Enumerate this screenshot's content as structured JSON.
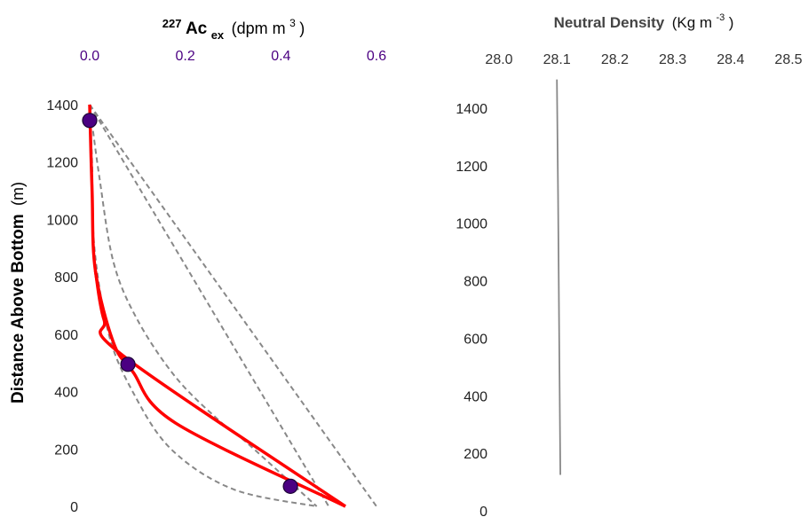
{
  "colors": {
    "purple": "#4b0082",
    "red": "#ff0000",
    "gray_dash": "#888888",
    "gray_line": "#888888",
    "tick_text": "#222222",
    "right_tick_text": "#333333"
  },
  "chart_data": [
    {
      "type": "line",
      "title": "",
      "xlabel": {
        "main": "Ac",
        "superscript": "227",
        "subscript": "ex",
        "unit_prefix": "(dpm m",
        "unit_power": "3",
        "unit_suffix": ")"
      },
      "ylabel": {
        "bold": "Distance Above Bottom",
        "unit": "(m)"
      },
      "x_axis_position": "top",
      "xlim": [
        -0.02,
        0.62
      ],
      "ylim": [
        0,
        1400
      ],
      "x_ticks": [
        "0.0",
        "0.2",
        "0.4",
        "0.6"
      ],
      "x_tick_values": [
        0.0,
        0.2,
        0.4,
        0.6
      ],
      "y_ticks": [
        "0",
        "200",
        "400",
        "600",
        "800",
        "1000",
        "1200",
        "1400"
      ],
      "y_tick_values": [
        0,
        200,
        400,
        600,
        800,
        1000,
        1200,
        1400
      ],
      "grid": false,
      "series": [
        {
          "style": "dashed-gray",
          "points": [
            [
              0.0,
              1400
            ],
            [
              0.005,
              1200
            ],
            [
              0.01,
              900
            ],
            [
              0.04,
              600
            ],
            [
              0.09,
              400
            ],
            [
              0.17,
              200
            ],
            [
              0.3,
              60
            ],
            [
              0.475,
              0
            ]
          ]
        },
        {
          "style": "dashed-gray",
          "points": [
            [
              0.0,
              1400
            ],
            [
              0.02,
              1150
            ],
            [
              0.05,
              850
            ],
            [
              0.1,
              650
            ],
            [
              0.18,
              450
            ],
            [
              0.27,
              300
            ],
            [
              0.33,
              220
            ],
            [
              0.475,
              0
            ]
          ]
        },
        {
          "style": "dashed-gray",
          "points": [
            [
              0.0,
              1400
            ],
            [
              0.5,
              0
            ]
          ]
        },
        {
          "style": "dashed-gray",
          "points": [
            [
              0.0,
              1400
            ],
            [
              0.6,
              0
            ]
          ]
        },
        {
          "style": "solid-red",
          "points": [
            [
              0.0,
              1400
            ],
            [
              0.005,
              1100
            ],
            [
              0.012,
              820
            ],
            [
              0.05,
              570
            ],
            [
              0.09,
              470
            ],
            [
              0.18,
              290
            ],
            [
              0.535,
              0
            ]
          ]
        },
        {
          "style": "solid-red",
          "points": [
            [
              0.535,
              0
            ],
            [
              0.07,
              525
            ],
            [
              0.03,
              650
            ],
            [
              0.012,
              820
            ]
          ]
        }
      ],
      "observations": [
        {
          "x": 0.0,
          "y": 1345
        },
        {
          "x": 0.08,
          "y": 495
        },
        {
          "x": 0.42,
          "y": 70
        }
      ]
    },
    {
      "type": "line",
      "title": "",
      "xlabel": {
        "bold": "Neutral Density",
        "unit_prefix": "(Kg m",
        "unit_power": "-3",
        "unit_suffix": ")"
      },
      "x_axis_position": "top",
      "xlim": [
        28.0,
        28.5
      ],
      "ylim": [
        0,
        1400
      ],
      "x_ticks": [
        "28.0",
        "28.1",
        "28.2",
        "28.3",
        "28.4",
        "28.5"
      ],
      "x_tick_values": [
        28.0,
        28.1,
        28.2,
        28.3,
        28.4,
        28.5
      ],
      "y_ticks": [
        "0",
        "200",
        "400",
        "600",
        "800",
        "1000",
        "1200",
        "1400"
      ],
      "y_tick_values": [
        0,
        200,
        400,
        600,
        800,
        1000,
        1200,
        1400
      ],
      "grid": false,
      "series": [
        {
          "style": "solid-gray",
          "points": [
            [
              28.1,
              1500
            ],
            [
              28.102,
              1100
            ],
            [
              28.104,
              600
            ],
            [
              28.106,
              125
            ]
          ]
        }
      ]
    }
  ]
}
